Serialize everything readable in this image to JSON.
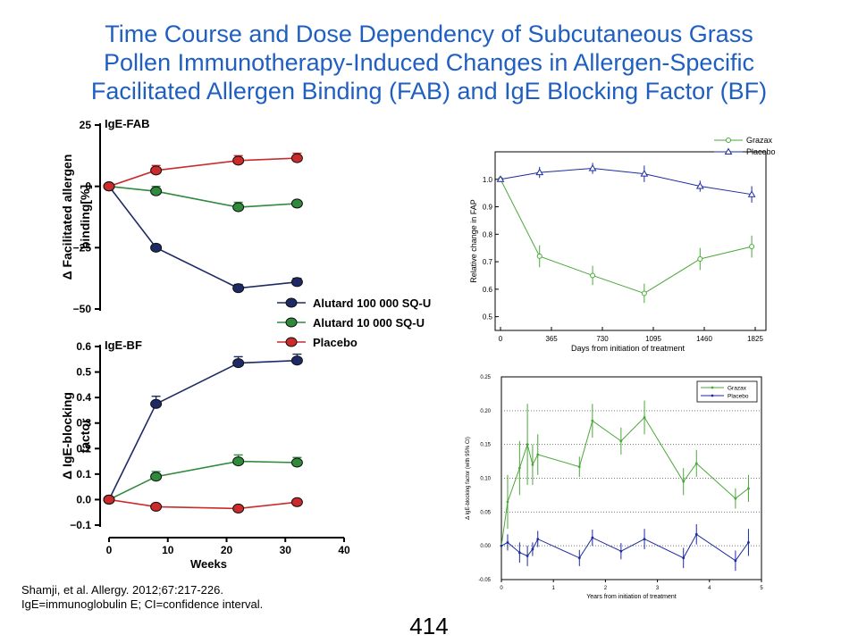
{
  "slide": {
    "title_lines": [
      "Time Course and Dose Dependency of Subcutaneous Grass",
      "Pollen Immunotherapy-Induced Changes in Allergen-Specific",
      "Facilitated Allergen Binding (FAB) and IgE Blocking Factor (BF)"
    ],
    "citation": "Shamji, et al. Allergy. 2012;67:217-226.",
    "abbreviations": "IgE=immunoglobulin  E; CI=confidence  interval.",
    "page_number": "414"
  },
  "colors": {
    "title": "#1f5fc1",
    "alutard_100000": "#1e2a66",
    "alutard_10000": "#2f8a3c",
    "placebo_left": "#cc2b2b",
    "grazax": "#4aa83a",
    "placebo_right": "#1c2aa0"
  },
  "chart_data": [
    {
      "type": "line",
      "title": "IgE-FAB",
      "ylabel": "Δ Facilitated allergen binding[%]",
      "xlabel": "",
      "xlim": [
        0,
        40
      ],
      "ylim": [
        -50,
        25
      ],
      "yticks": [
        25,
        0,
        -25,
        -50
      ],
      "ytick_labels": [
        "25",
        "0",
        "−25",
        "−50"
      ],
      "x": [
        0,
        8,
        22,
        32
      ],
      "series": [
        {
          "name": "Alutard 100 000 SQ-U",
          "values": [
            0,
            -25,
            -41.5,
            -39
          ],
          "errors": [
            0,
            1,
            1.5,
            1.5
          ]
        },
        {
          "name": "Alutard 10 000 SQ-U",
          "values": [
            0,
            -2,
            -8.5,
            -7
          ],
          "errors": [
            0,
            2,
            2,
            1
          ]
        },
        {
          "name": "Placebo",
          "values": [
            0,
            6.5,
            10.5,
            11.5
          ],
          "errors": [
            0,
            2,
            2,
            2
          ]
        }
      ]
    },
    {
      "type": "line",
      "title": "IgE-BF",
      "ylabel": "Δ IgE-blocking factor",
      "xlabel": "Weeks",
      "xlim": [
        0,
        40
      ],
      "ylim": [
        -0.1,
        0.6
      ],
      "yticks": [
        0.6,
        0.5,
        0.4,
        0.3,
        0.2,
        0.1,
        0.0,
        -0.1
      ],
      "ytick_labels": [
        "0.6",
        "0.5",
        "0.4",
        "0.3",
        "0.2",
        "0.1",
        "0.0",
        "−0.1"
      ],
      "xticks": [
        0,
        10,
        20,
        30,
        40
      ],
      "xtick_labels": [
        "0",
        "10",
        "20",
        "30",
        "40"
      ],
      "x": [
        0,
        8,
        22,
        32
      ],
      "series": [
        {
          "name": "Alutard 100 000 SQ-U",
          "values": [
            0,
            0.375,
            0.535,
            0.545
          ],
          "errors": [
            0,
            0.03,
            0.025,
            0.025
          ]
        },
        {
          "name": "Alutard 10 000 SQ-U",
          "values": [
            0,
            0.09,
            0.15,
            0.145
          ],
          "errors": [
            0,
            0.02,
            0.025,
            0.02
          ]
        },
        {
          "name": "Placebo",
          "values": [
            0,
            -0.028,
            -0.035,
            -0.01
          ],
          "errors": [
            0,
            0.01,
            0.01,
            0.01
          ]
        }
      ]
    },
    {
      "type": "line",
      "title": "",
      "ylabel": "Relative change in FAP",
      "xlabel": "Days from initiation of treatment",
      "xlim": [
        0,
        1825
      ],
      "ylim": [
        0.45,
        1.1
      ],
      "yticks": [
        0.5,
        0.6,
        0.7,
        0.8,
        0.9,
        1.0
      ],
      "ytick_labels": [
        "0.5",
        "0.6",
        "0.7",
        "0.8",
        "0.9",
        "1.0"
      ],
      "xticks": [
        0,
        365,
        730,
        1095,
        1460,
        1825
      ],
      "xtick_labels": [
        "0",
        "365",
        "730",
        "1095",
        "1460",
        "1825"
      ],
      "series": [
        {
          "name": "Grazax",
          "x": [
            0,
            280,
            660,
            1030,
            1430,
            1800
          ],
          "values": [
            1.0,
            0.72,
            0.65,
            0.585,
            0.71,
            0.755
          ],
          "errors": [
            0,
            0.04,
            0.035,
            0.035,
            0.04,
            0.04
          ]
        },
        {
          "name": "Placebo",
          "x": [
            0,
            280,
            660,
            1030,
            1430,
            1800
          ],
          "values": [
            1.0,
            1.025,
            1.04,
            1.02,
            0.975,
            0.945
          ],
          "errors": [
            0,
            0.02,
            0.02,
            0.03,
            0.02,
            0.03
          ]
        }
      ]
    },
    {
      "type": "line",
      "title": "",
      "ylabel": "Δ IgE-blocking factor (with 95% CI)",
      "xlabel": "Years from initiation of treatment",
      "xlim": [
        0,
        5
      ],
      "ylim": [
        -0.05,
        0.25
      ],
      "yticks": [
        -0.05,
        0.0,
        0.05,
        0.1,
        0.15,
        0.2,
        0.25
      ],
      "ytick_labels": [
        "-0.05",
        "0.00",
        "0.05",
        "0.10",
        "0.15",
        "0.20",
        "0.25"
      ],
      "xticks": [
        0,
        1,
        2,
        3,
        4,
        5
      ],
      "xtick_labels": [
        "0",
        "1",
        "2",
        "3",
        "4",
        "5"
      ],
      "grid": "horizontal dotted",
      "series": [
        {
          "name": "Grazax",
          "x": [
            0,
            0.12,
            0.35,
            0.5,
            0.6,
            0.7,
            1.5,
            1.75,
            2.3,
            2.75,
            3.5,
            3.75,
            4.5,
            4.75
          ],
          "values": [
            0,
            0.065,
            0.115,
            0.15,
            0.12,
            0.135,
            0.117,
            0.185,
            0.155,
            0.19,
            0.095,
            0.122,
            0.07,
            0.085
          ],
          "errors": [
            0,
            0.04,
            0.04,
            0.06,
            0.03,
            0.03,
            0.015,
            0.025,
            0.02,
            0.025,
            0.02,
            0.02,
            0.015,
            0.02
          ]
        },
        {
          "name": "Placebo",
          "x": [
            0,
            0.12,
            0.35,
            0.5,
            0.6,
            0.7,
            1.5,
            1.75,
            2.3,
            2.75,
            3.5,
            3.75,
            4.5,
            4.75
          ],
          "values": [
            0,
            0.005,
            -0.01,
            -0.015,
            -0.005,
            0.01,
            -0.018,
            0.012,
            -0.008,
            0.01,
            -0.018,
            0.017,
            -0.022,
            0.005
          ],
          "errors": [
            0,
            0.012,
            0.015,
            0.015,
            0.01,
            0.012,
            0.012,
            0.012,
            0.012,
            0.015,
            0.015,
            0.015,
            0.015,
            0.02
          ]
        }
      ]
    }
  ]
}
